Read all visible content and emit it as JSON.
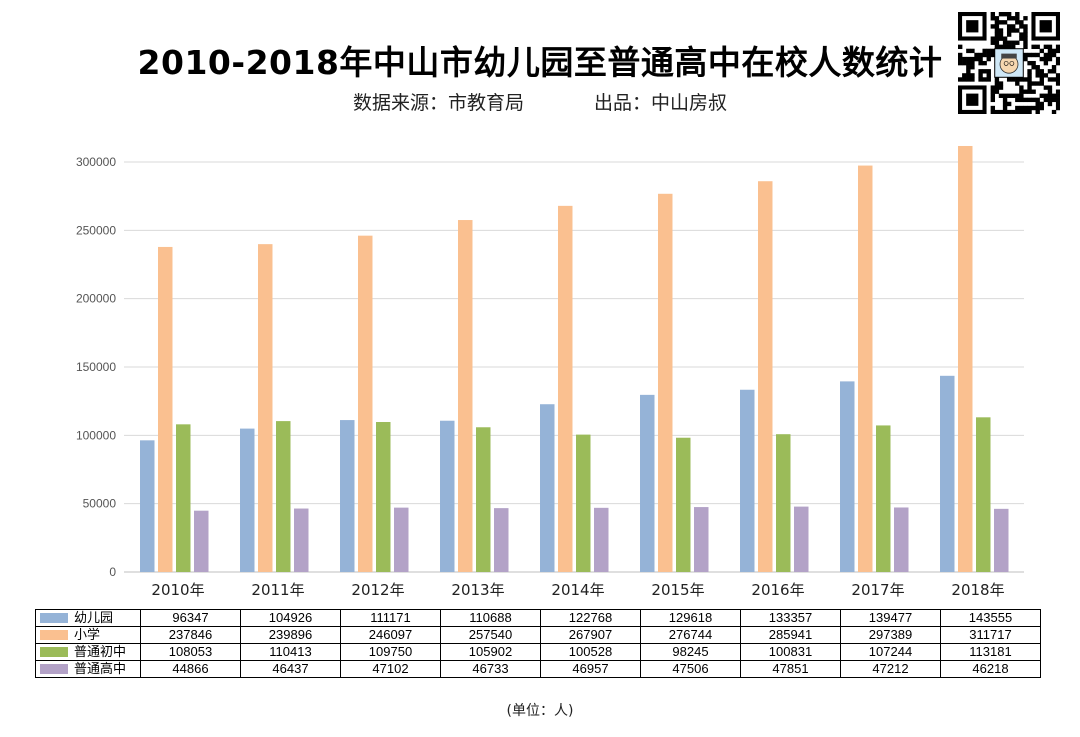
{
  "title": "2010-2018年中山市幼儿园至普通高中在校人数统计",
  "subtitle": {
    "source": "数据来源：市教育局",
    "producer": "出品：中山房叔"
  },
  "unit_note": "(单位：人)",
  "qr_icon": "qr-code-icon",
  "chart_data": {
    "type": "bar",
    "categories": [
      "2010年",
      "2011年",
      "2012年",
      "2013年",
      "2014年",
      "2015年",
      "2016年",
      "2017年",
      "2018年"
    ],
    "series": [
      {
        "name": "幼儿园",
        "color": "#95b3d7",
        "values": [
          96347,
          104926,
          111171,
          110688,
          122768,
          129618,
          133357,
          139477,
          143555
        ]
      },
      {
        "name": "小学",
        "color": "#fac090",
        "values": [
          237846,
          239896,
          246097,
          257540,
          267907,
          276744,
          285941,
          297389,
          311717
        ]
      },
      {
        "name": "普通初中",
        "color": "#9bbb59",
        "values": [
          108053,
          110413,
          109750,
          105902,
          100528,
          98245,
          100831,
          107244,
          113181
        ]
      },
      {
        "name": "普通高中",
        "color": "#b3a2c7",
        "values": [
          44866,
          46437,
          47102,
          46733,
          46957,
          47506,
          47851,
          47212,
          46218
        ]
      }
    ],
    "ylim": [
      0,
      300000
    ],
    "yticks": [
      "0",
      "50000",
      "100000",
      "150000",
      "200000",
      "250000",
      "300000"
    ],
    "grid": true,
    "legend": "data-table below chart"
  }
}
